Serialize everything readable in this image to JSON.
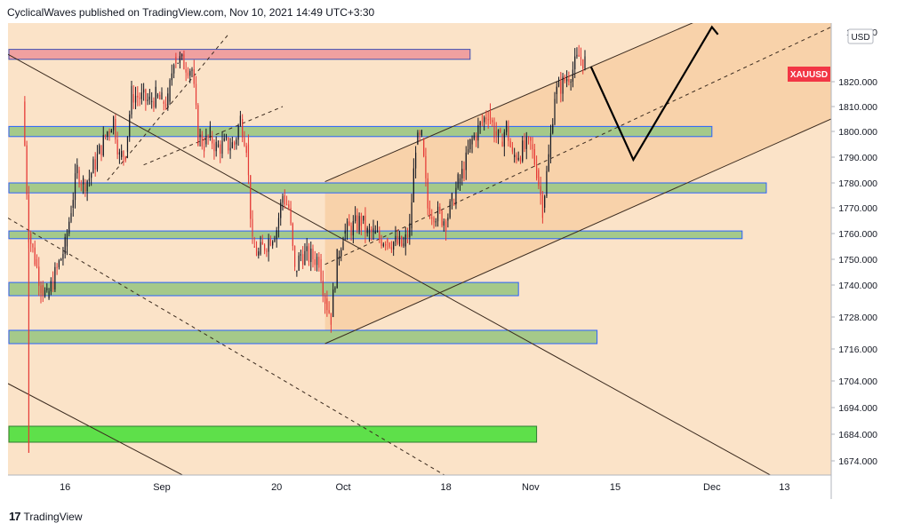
{
  "header": {
    "text": "CyclicalWaves published on TradingView.com, Nov 10, 2021 14:49 UTC+3:30"
  },
  "footer": {
    "logo_glyph": "17",
    "brand": "TradingView"
  },
  "chart_data": {
    "type": "candlestick",
    "symbol": "XAUUSD",
    "currency": "USD",
    "y_ticks": [
      "1674.000",
      "1684.000",
      "1694.000",
      "1704.000",
      "1716.000",
      "1728.000",
      "1740.000",
      "1750.000",
      "1760.000",
      "1770.000",
      "1780.000",
      "1790.000",
      "1800.000",
      "1810.000",
      "1820.000"
    ],
    "top_tick_partial": "18..000",
    "x_ticks": [
      "16",
      "Sep",
      "20",
      "Oct",
      "18",
      "Nov",
      "15",
      "Dec",
      "13"
    ],
    "last_price_label": "XAUUSD",
    "colors": {
      "background": "#fbe3c8",
      "channel_fill": "#f8d2aa",
      "bull": "#131722",
      "bear": "#e53935",
      "zone_green": "#a5c98a",
      "zone_border": "#2962ff",
      "zone_bright": "#5ee04a",
      "zone_red": "#f0a0a0",
      "label_red": "#f23645"
    },
    "zones": [
      {
        "kind": "resistance",
        "low": 1829,
        "high": 1833
      },
      {
        "kind": "support",
        "low": 1798,
        "high": 1802
      },
      {
        "kind": "support",
        "low": 1776,
        "high": 1780
      },
      {
        "kind": "support",
        "low": 1758,
        "high": 1761
      },
      {
        "kind": "support",
        "low": 1736,
        "high": 1741
      },
      {
        "kind": "support",
        "low": 1718,
        "high": 1723
      },
      {
        "kind": "target",
        "low": 1681,
        "high": 1687
      }
    ],
    "projection": [
      {
        "date": "Nov 11",
        "price": 1826
      },
      {
        "date": "Nov 18",
        "price": 1789
      },
      {
        "date": "Dec 1",
        "price": 1842
      }
    ]
  }
}
